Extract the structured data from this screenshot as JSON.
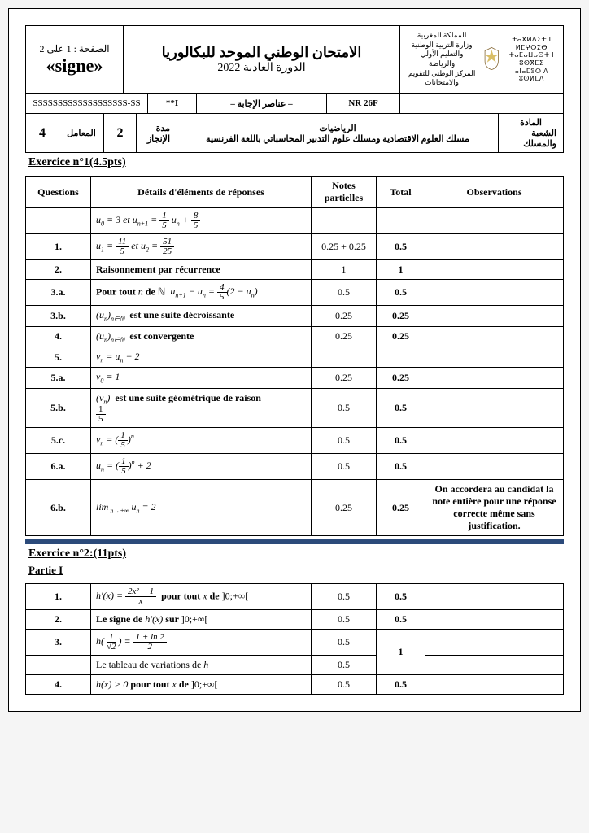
{
  "header": {
    "page_label_top": "الصفحة : 1 على 2",
    "signe": "«signe»",
    "exam_title": "الامتحان الوطني الموحد للبكالوريا",
    "session": "الدورة العادية 2022",
    "ministry_lines": [
      "المملكة المغربية",
      "وزارة التربية الوطنية",
      "والتعليم الأولي والرياضة",
      "المركز الوطني للتقويم والامتحانات"
    ],
    "tifinagh_lines": [
      "ⵜⴰⴳⵍⴷⵉⵜ ⵏ ⵍⵎⵖⵔⵉⴱ",
      "ⵜⴰⵎⴰⵡⴰⵙⵜ ⵏ ⵓⵙⴳⵎⵉ",
      "ⴰⵏⴰⵎⵓⵔ ⴷ ⵓⵙⵍⵎⴷ"
    ]
  },
  "row2": {
    "serial": "SSSSSSSSSSSSSSSSSSS-SS",
    "code1": "**I",
    "subtitle": "– عناصر الإجابة –",
    "ref": "NR 26F"
  },
  "row3": {
    "madda_label": "المادة",
    "shoba_label": "الشعبة والمسلك",
    "subject": "الرياضيات",
    "stream": "مسلك العلوم الاقتصادية ومسلك علوم التدبير المحاسباتي باللغة الفرنسية",
    "duration_label": "مدة الإنجاز",
    "duration": "2",
    "coef_label": "المعامل",
    "coef": "4"
  },
  "ex1": {
    "title": "Exercice n°1(4.5pts)",
    "cols": {
      "q": "Questions",
      "d": "Détails d'éléments de réponses",
      "np": "Notes partielles",
      "t": "Total",
      "obs": "Observations"
    },
    "rows": [
      {
        "q": "",
        "d_html": "<span class='math'>u<span class='sub'>0</span> = 3 et u<span class='sub'>n+1</span> = <span class='frac'><span class='n'>1</span><span class='d'>5</span></span> u<span class='sub'>n</span> + <span class='frac'><span class='n'>8</span><span class='d'>5</span></span></span>",
        "np": "",
        "t": "",
        "obs": ""
      },
      {
        "q": "1.",
        "d_html": "<span class='math'>u<span class='sub'>1</span> = <span class='frac'><span class='n'>11</span><span class='d'>5</span></span> et u<span class='sub'>2</span> = <span class='frac'><span class='n'>51</span><span class='d'>25</span></span></span>",
        "np": "0.25 + 0.25",
        "t": "0.5",
        "obs": ""
      },
      {
        "q": "2.",
        "d_html": "<b>Raisonnement par récurrence</b>",
        "np": "1",
        "t": "1",
        "obs": ""
      },
      {
        "q": "3.a.",
        "d_html": "<b>Pour tout </b><span class='math'>n</span><b> de </b>ℕ &nbsp;<span class='math'>u<span class='sub'>n+1</span> − u<span class='sub'>n</span> = <span class='frac'><span class='n'>4</span><span class='d'>5</span></span>(2 − u<span class='sub'>n</span>)</span>",
        "np": "0.5",
        "t": "0.5",
        "obs": ""
      },
      {
        "q": "3.b.",
        "d_html": "<span class='math'>(u<span class='sub'>n</span>)<span class='sub'>n∈ℕ</span></span> &nbsp;<b>est une suite décroissante</b>",
        "np": "0.25",
        "t": "0.25",
        "obs": ""
      },
      {
        "q": "4.",
        "d_html": "<span class='math'>(u<span class='sub'>n</span>)<span class='sub'>n∈ℕ</span></span> &nbsp;<b>est convergente</b>",
        "np": "0.25",
        "t": "0.25",
        "obs": ""
      },
      {
        "q": "5.",
        "d_html": "<span class='math'>v<span class='sub'>n</span> = u<span class='sub'>n</span> − 2</span>",
        "np": "",
        "t": "",
        "obs": ""
      },
      {
        "q": "5.a.",
        "d_html": "<span class='math'>v<span class='sub'>0</span> = 1</span>",
        "np": "0.25",
        "t": "0.25",
        "obs": ""
      },
      {
        "q": "5.b.",
        "d_html": "<span class='math'>(v<span class='sub'>n</span>)</span> &nbsp;<b>est une suite géométrique de raison</b><br><span class='frac'><span class='n'>1</span><span class='d'>5</span></span>",
        "np": "0.5",
        "t": "0.5",
        "obs": ""
      },
      {
        "q": "5.c.",
        "d_html": "<span class='math'>v<span class='sub'>n</span> = (<span class='frac'><span class='n'>1</span><span class='d'>5</span></span>)<span class='sup'>n</span></span>",
        "np": "0.5",
        "t": "0.5",
        "obs": ""
      },
      {
        "q": "6.a.",
        "d_html": "<span class='math'>u<span class='sub'>n</span> = (<span class='frac'><span class='n'>1</span><span class='d'>5</span></span>)<span class='sup'>n</span> + 2</span>",
        "np": "0.5",
        "t": "0.5",
        "obs": ""
      },
      {
        "q": "6.b.",
        "d_html": "<span class='math'>lim<span class='sub'> n→+∞</span> u<span class='sub'>n</span> = 2</span>",
        "np": "0.25",
        "t": "0.25",
        "obs": "On accordera au candidat la note entière pour une réponse correcte même sans justification."
      }
    ]
  },
  "ex2": {
    "title": "Exercice n°2:(11pts)",
    "partie": "Partie I",
    "rows": [
      {
        "q": "1.",
        "d_html": "<span class='math'>h′(x) = <span class='frac'><span class='n'>2x² − 1</span><span class='d'>x</span></span></span> &nbsp;<b>pour tout </b><span class='math'>x</span><b> de </b>]0;+∞[",
        "np": "0.5",
        "t": "0.5",
        "obs": ""
      },
      {
        "q": "2.",
        "d_html": "<b>Le signe de </b><span class='math'>h′(x)</span><b> sur </b>]0;+∞[",
        "np": "0.5",
        "t": "0.5",
        "obs": ""
      },
      {
        "q": "3.",
        "d_html": "<span class='math'>h(<span class='frac'><span class='n'>1</span><span class='d'>√2</span></span>) = <span class='frac'><span class='n'>1 + ln 2</span><span class='d'>2</span></span></span>",
        "np": "0.5",
        "t": "",
        "obs": "",
        "rowspan_t": 2,
        "t_val": "1"
      },
      {
        "q": "",
        "d_html": "Le tableau de variations de <span class='math'>h</span>",
        "np": "0.5",
        "t": "",
        "obs": "",
        "skip_t": true
      },
      {
        "q": "4.",
        "d_html": "<span class='math'>h(x) > 0</span> <b>pour tout </b><span class='math'>x</span><b> de </b>]0;+∞[",
        "np": "0.5",
        "t": "0.5",
        "obs": ""
      }
    ]
  },
  "colors": {
    "border": "#000000",
    "sep_bar": "#2b4a7a",
    "bg": "#ffffff"
  }
}
